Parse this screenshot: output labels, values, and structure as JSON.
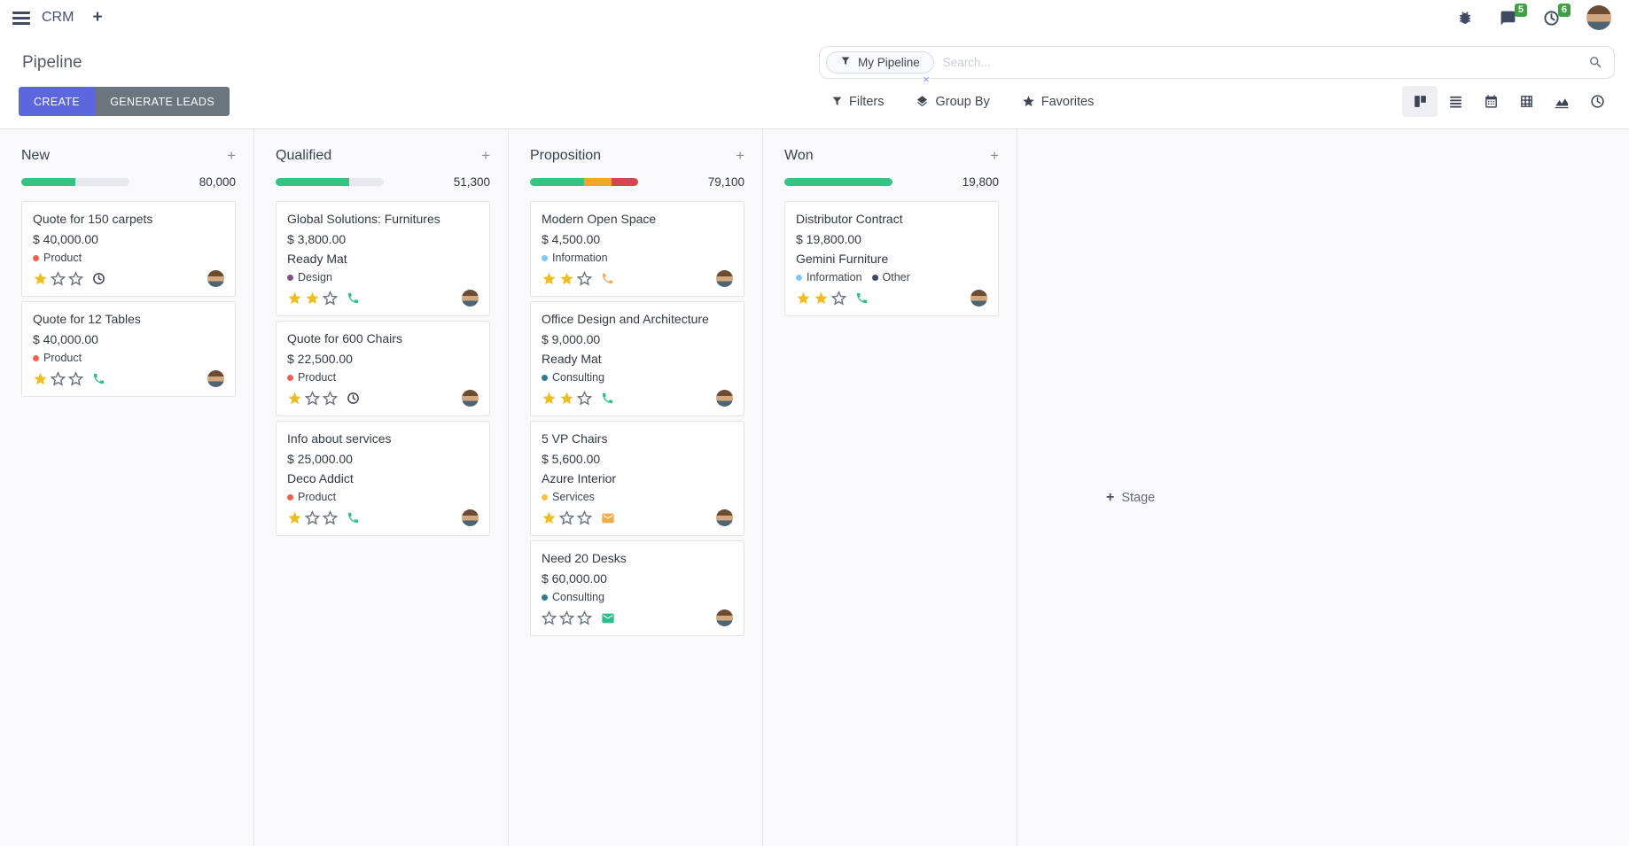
{
  "navbar": {
    "app_name": "CRM",
    "add_tab_label": "+",
    "messages_badge": "5",
    "activities_badge": "6"
  },
  "control_panel": {
    "title": "Pipeline",
    "create_label": "CREATE",
    "generate_leads_label": "GENERATE LEADS",
    "search": {
      "facet_label": "My Pipeline",
      "facet_remove_label": "×",
      "placeholder": "Search...",
      "value": ""
    },
    "filter_menus": {
      "filters": "Filters",
      "group_by": "Group By",
      "favorites": "Favorites"
    },
    "view_switcher": [
      "kanban",
      "list",
      "calendar",
      "pivot",
      "graph",
      "activity"
    ],
    "active_view": "kanban"
  },
  "kanban": {
    "add_stage_plus": "+",
    "add_stage_label": "Stage",
    "add_column_label": "+",
    "max_stars": 3,
    "columns": [
      {
        "name": "New",
        "total": "80,000",
        "progress": [
          {
            "color": "#34c584",
            "pct": 50
          }
        ],
        "cards": [
          {
            "title": "Quote for 150 carpets",
            "amount": "$ 40,000.00",
            "partner": "",
            "tags": [
              {
                "label": "Product",
                "color": "#f06050"
              }
            ],
            "stars": 1,
            "activity": "clock",
            "activity_color": "#3c4350"
          },
          {
            "title": "Quote for 12 Tables",
            "amount": "$ 40,000.00",
            "partner": "",
            "tags": [
              {
                "label": "Product",
                "color": "#f06050"
              }
            ],
            "stars": 1,
            "activity": "phone",
            "activity_color": "#2fbd8a"
          }
        ]
      },
      {
        "name": "Qualified",
        "total": "51,300",
        "progress": [
          {
            "color": "#34c584",
            "pct": 68
          }
        ],
        "cards": [
          {
            "title": "Global Solutions: Furnitures",
            "amount": "$ 3,800.00",
            "partner": "Ready Mat",
            "tags": [
              {
                "label": "Design",
                "color": "#7c5280"
              }
            ],
            "stars": 2,
            "activity": "phone",
            "activity_color": "#2fbd8a"
          },
          {
            "title": "Quote for 600 Chairs",
            "amount": "$ 22,500.00",
            "partner": "",
            "tags": [
              {
                "label": "Product",
                "color": "#f06050"
              }
            ],
            "stars": 1,
            "activity": "clock",
            "activity_color": "#3c4350"
          },
          {
            "title": "Info about services",
            "amount": "$ 25,000.00",
            "partner": "Deco Addict",
            "tags": [
              {
                "label": "Product",
                "color": "#f06050"
              }
            ],
            "stars": 1,
            "activity": "phone",
            "activity_color": "#2fbd8a"
          }
        ]
      },
      {
        "name": "Proposition",
        "total": "79,100",
        "progress": [
          {
            "color": "#34c584",
            "pct": 50
          },
          {
            "color": "#f5a623",
            "pct": 25
          },
          {
            "color": "#d64550",
            "pct": 25
          }
        ],
        "cards": [
          {
            "title": "Modern Open Space",
            "amount": "$ 4,500.00",
            "partner": "",
            "tags": [
              {
                "label": "Information",
                "color": "#7ec8f3"
              }
            ],
            "stars": 2,
            "activity": "phone",
            "activity_color": "#f0ad5e"
          },
          {
            "title": "Office Design and Architecture",
            "amount": "$ 9,000.00",
            "partner": "Ready Mat",
            "tags": [
              {
                "label": "Consulting",
                "color": "#2a808f"
              }
            ],
            "stars": 2,
            "activity": "phone",
            "activity_color": "#2fbd8a"
          },
          {
            "title": "5 VP Chairs",
            "amount": "$ 5,600.00",
            "partner": "Azure Interior",
            "tags": [
              {
                "label": "Services",
                "color": "#efc543"
              }
            ],
            "stars": 1,
            "activity": "mail",
            "activity_color": "#eeae4e"
          },
          {
            "title": "Need 20 Desks",
            "amount": "$ 60,000.00",
            "partner": "",
            "tags": [
              {
                "label": "Consulting",
                "color": "#2a808f"
              }
            ],
            "stars": 0,
            "activity": "mail",
            "activity_color": "#2fbd8a"
          }
        ]
      },
      {
        "name": "Won",
        "total": "19,800",
        "progress": [
          {
            "color": "#34c584",
            "pct": 100
          }
        ],
        "cards": [
          {
            "title": "Distributor Contract",
            "amount": "$ 19,800.00",
            "partner": "Gemini Furniture",
            "tags": [
              {
                "label": "Information",
                "color": "#7ec8f3"
              },
              {
                "label": "Other",
                "color": "#3a4a68"
              }
            ],
            "stars": 2,
            "activity": "phone",
            "activity_color": "#2fbd8a"
          }
        ]
      }
    ]
  },
  "icons": {
    "apps-menu-icon": "hamburger bars",
    "bug-icon": "debug beetle",
    "chat-icon": "speech bubble",
    "clock-icon": "clock face",
    "filter-icon": "funnel",
    "layers-icon": "stacked layers",
    "star-icon": "star",
    "search-icon": "magnifier",
    "phone-icon": "telephone handset",
    "mail-icon": "envelope",
    "close-icon": "×"
  },
  "colors": {
    "primary": "#5c67de",
    "secondary": "#6c757d",
    "success": "#34c584",
    "warning": "#f5a623",
    "danger": "#d64550",
    "star_gold": "#eebd20",
    "badge_green": "#3fa142",
    "board_bg": "#f9f9fb"
  }
}
